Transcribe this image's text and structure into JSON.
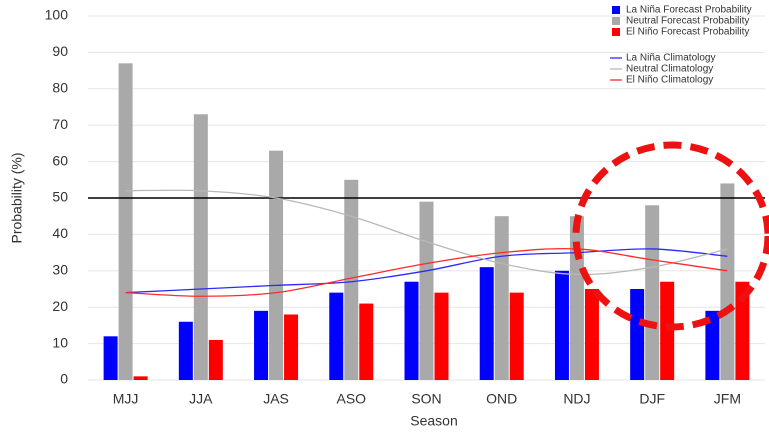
{
  "chart_data": {
    "type": "bar",
    "categories": [
      "MJJ",
      "JJA",
      "JAS",
      "ASO",
      "SON",
      "OND",
      "NDJ",
      "DJF",
      "JFM"
    ],
    "series": [
      {
        "name": "La Niña Forecast Probability",
        "color": "#0000ff",
        "values": [
          12,
          16,
          19,
          24,
          27,
          31,
          30,
          25,
          19
        ]
      },
      {
        "name": "Neutral Forecast Probability",
        "color": "#a9a9a9",
        "values": [
          87,
          73,
          63,
          55,
          49,
          45,
          45,
          48,
          54
        ]
      },
      {
        "name": "El Niño Forecast Probability",
        "color": "#ff0000",
        "values": [
          1,
          11,
          18,
          21,
          24,
          24,
          25,
          27,
          27
        ]
      }
    ],
    "lines": [
      {
        "name": "La Niña Climatology",
        "color": "#2b2bff",
        "values": [
          24,
          25,
          26,
          27,
          30,
          34,
          35,
          36,
          34
        ]
      },
      {
        "name": "Neutral Climatology",
        "color": "#b8b8b8",
        "values": [
          52,
          52,
          50,
          45,
          38,
          32,
          29,
          31,
          36
        ]
      },
      {
        "name": "El Niño Climatology",
        "color": "#ff2b2b",
        "values": [
          24,
          23,
          24,
          28,
          32,
          35,
          36,
          33,
          30
        ]
      }
    ],
    "reference_line": 50,
    "xlabel": "Season",
    "ylabel": "Probability (%)",
    "ylim": [
      0,
      100
    ],
    "yticks": [
      0,
      10,
      20,
      30,
      40,
      50,
      60,
      70,
      80,
      90,
      100
    ],
    "grid": true,
    "legend": "top-right"
  }
}
